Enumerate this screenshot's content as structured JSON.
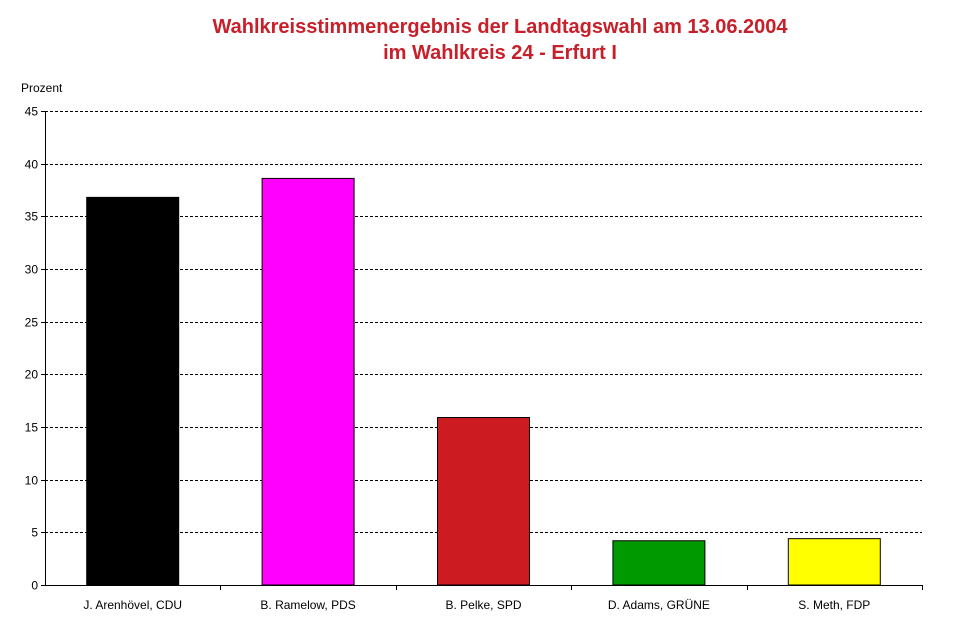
{
  "chart_data": {
    "type": "bar",
    "title": "Wahlkreisstimmenergebnis der Landtagswahl am 13.06.2004",
    "subtitle": "im Wahlkreis 24 - Erfurt I",
    "ylabel": "Prozent",
    "xlabel": "",
    "ylim": [
      0,
      45
    ],
    "yticks": [
      0,
      5,
      10,
      15,
      20,
      25,
      30,
      35,
      40,
      45
    ],
    "grid": true,
    "legend": "none",
    "categories": [
      "J. Arenhövel, CDU",
      "B. Ramelow, PDS",
      "B. Pelke, SPD",
      "D. Adams, GRÜNE",
      "S. Meth, FDP"
    ],
    "values": [
      36.8,
      38.6,
      15.9,
      4.2,
      4.4
    ],
    "colors": [
      "#000000",
      "#ff00ff",
      "#cc1c22",
      "#009900",
      "#ffff00"
    ]
  }
}
